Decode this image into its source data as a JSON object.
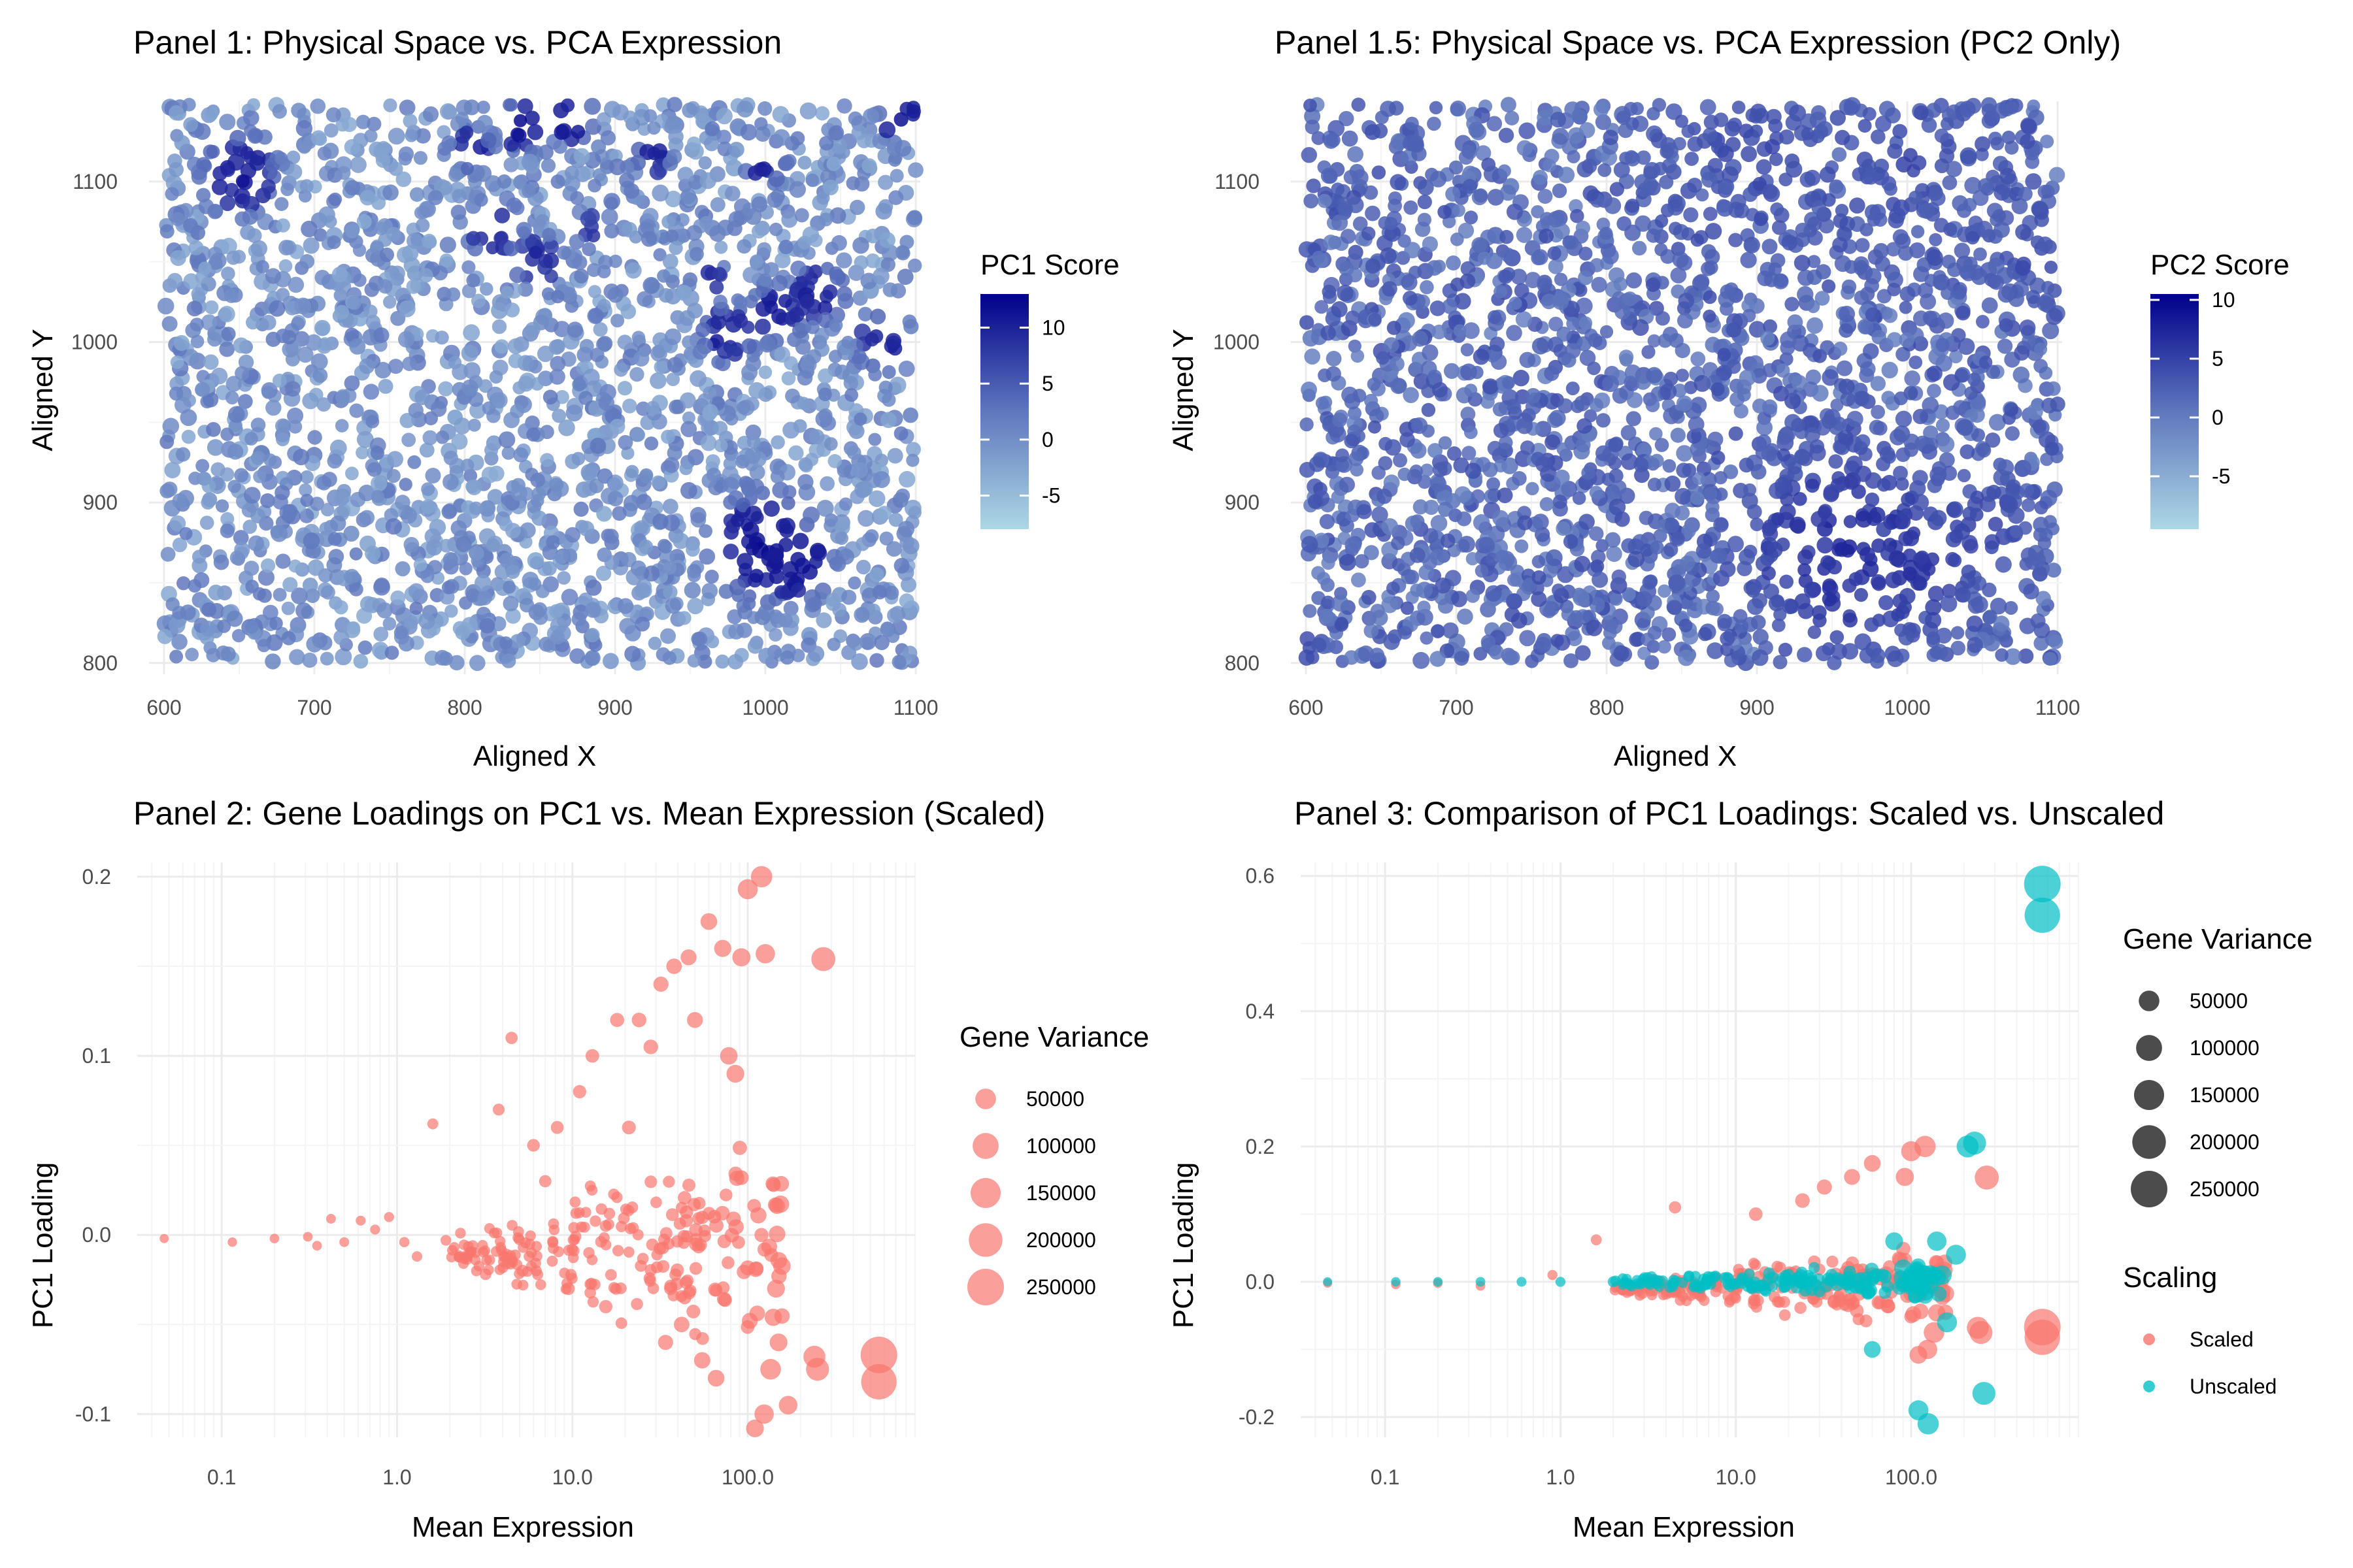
{
  "chart_data": [
    {
      "id": "p1",
      "type": "scatter",
      "title": "Panel 1: Physical Space vs. PCA Expression",
      "xlabel": "Aligned X",
      "ylabel": "Aligned Y",
      "xlim": [
        590,
        1103
      ],
      "ylim": [
        793,
        1150
      ],
      "xticks": [
        600,
        700,
        800,
        900,
        1000,
        1100
      ],
      "yticks": [
        800,
        900,
        1000,
        1100
      ],
      "xtick_labels": [
        "600",
        "700",
        "800",
        "900",
        "1000",
        "1100"
      ],
      "ytick_labels": [
        "800",
        "900",
        "1000",
        "1100"
      ],
      "grid": true,
      "color_scale": {
        "title": "PC1 Score",
        "min": -8,
        "max": 13,
        "low_color": "#add8e6",
        "high_color": "#00008b",
        "ticks": [
          10,
          5,
          0,
          -5
        ],
        "tick_labels": [
          "10",
          "5",
          "0",
          "-5"
        ]
      },
      "spots": {
        "x_range": [
          600,
          1100
        ],
        "y_range": [
          800,
          1148
        ],
        "typical_score": -1
      },
      "hotspots": [
        {
          "x": 650,
          "y": 1105,
          "radius": 22,
          "score": 11
        },
        {
          "x": 838,
          "y": 1135,
          "radius": 14,
          "score": 12
        },
        {
          "x": 870,
          "y": 1140,
          "radius": 14,
          "score": 12
        },
        {
          "x": 805,
          "y": 1120,
          "radius": 12,
          "score": 11
        },
        {
          "x": 925,
          "y": 1115,
          "radius": 10,
          "score": 11
        },
        {
          "x": 1000,
          "y": 1112,
          "radius": 12,
          "score": 11
        },
        {
          "x": 1092,
          "y": 1140,
          "radius": 14,
          "score": 12
        },
        {
          "x": 820,
          "y": 1070,
          "radius": 16,
          "score": 10
        },
        {
          "x": 848,
          "y": 1050,
          "radius": 14,
          "score": 10
        },
        {
          "x": 885,
          "y": 1070,
          "radius": 10,
          "score": 9
        },
        {
          "x": 962,
          "y": 1040,
          "radius": 10,
          "score": 10
        },
        {
          "x": 975,
          "y": 1005,
          "radius": 16,
          "score": 11
        },
        {
          "x": 1008,
          "y": 1018,
          "radius": 16,
          "score": 11
        },
        {
          "x": 1035,
          "y": 1030,
          "radius": 16,
          "score": 11
        },
        {
          "x": 1078,
          "y": 1000,
          "radius": 16,
          "score": 11
        },
        {
          "x": 1000,
          "y": 872,
          "radius": 30,
          "score": 12
        },
        {
          "x": 1022,
          "y": 862,
          "radius": 20,
          "score": 12
        }
      ]
    },
    {
      "id": "p15",
      "type": "scatter",
      "title": "Panel 1.5: Physical Space vs. PCA Expression (PC2 Only)",
      "xlabel": "Aligned X",
      "ylabel": "Aligned Y",
      "xlim": [
        590,
        1103
      ],
      "ylim": [
        793,
        1150
      ],
      "xticks": [
        600,
        700,
        800,
        900,
        1000,
        1100
      ],
      "yticks": [
        800,
        900,
        1000,
        1100
      ],
      "xtick_labels": [
        "600",
        "700",
        "800",
        "900",
        "1000",
        "1100"
      ],
      "ytick_labels": [
        "800",
        "900",
        "1000",
        "1100"
      ],
      "grid": true,
      "color_scale": {
        "title": "PC2 Score",
        "min": -9.5,
        "max": 10.5,
        "low_color": "#add8e6",
        "high_color": "#00008b",
        "ticks": [
          10,
          5,
          0,
          -5
        ],
        "tick_labels": [
          "10",
          "5",
          "0",
          "-5"
        ]
      },
      "spots": {
        "x_range": [
          600,
          1100
        ],
        "y_range": [
          800,
          1148
        ],
        "typical_score": 1
      },
      "hotspots": [
        {
          "x": 960,
          "y": 870,
          "radius": 55,
          "score": 7
        },
        {
          "x": 1000,
          "y": 860,
          "radius": 40,
          "score": 6
        },
        {
          "x": 1040,
          "y": 880,
          "radius": 35,
          "score": 5
        },
        {
          "x": 900,
          "y": 1120,
          "radius": 60,
          "score": 4
        },
        {
          "x": 1000,
          "y": 1110,
          "radius": 55,
          "score": 4
        },
        {
          "x": 1085,
          "y": 1050,
          "radius": 30,
          "score": 4
        },
        {
          "x": 650,
          "y": 1105,
          "radius": 25,
          "score": 3
        }
      ]
    },
    {
      "id": "p2",
      "type": "scatter",
      "title": "Panel 2: Gene Loadings on PC1 vs. Mean Expression (Scaled)",
      "xlabel": "Mean Expression",
      "ylabel": "PC1 Loading",
      "xscale": "log",
      "xlim": [
        0.033,
        900
      ],
      "ylim": [
        -0.113,
        0.208
      ],
      "xticks": [
        0.1,
        1,
        10,
        100
      ],
      "xtick_labels": [
        "0.1",
        "1.0",
        "10.0",
        "100.0"
      ],
      "yticks": [
        -0.1,
        0,
        0.1,
        0.2
      ],
      "ytick_labels": [
        "-0.1",
        "0.0",
        "0.1",
        "0.2"
      ],
      "grid": true,
      "size_legend": {
        "title": "Gene Variance",
        "values": [
          50000,
          100000,
          150000,
          200000,
          250000
        ],
        "labels": [
          "50000",
          "100000",
          "150000",
          "200000",
          "250000"
        ]
      },
      "series": [
        {
          "name": "Scaled",
          "color": "#f8766d",
          "points": [
            [
              0.047,
              -0.002,
              500
            ],
            [
              0.115,
              -0.004,
              800
            ],
            [
              0.2,
              -0.002,
              900
            ],
            [
              0.31,
              -0.001,
              1000
            ],
            [
              0.35,
              -0.006,
              1000
            ],
            [
              0.42,
              0.009,
              1100
            ],
            [
              0.5,
              -0.004,
              1200
            ],
            [
              0.62,
              0.008,
              1300
            ],
            [
              0.75,
              0.003,
              1400
            ],
            [
              0.9,
              0.01,
              1500
            ],
            [
              1.1,
              -0.004,
              1700
            ],
            [
              1.3,
              -0.012,
              2000
            ],
            [
              1.6,
              0.062,
              3000
            ],
            [
              1.9,
              -0.003,
              2500
            ],
            [
              2.3,
              0.001,
              2500
            ],
            [
              2.7,
              -0.006,
              3000
            ],
            [
              3.2,
              -0.022,
              4000
            ],
            [
              3.8,
              0.07,
              5000
            ],
            [
              4.5,
              0.11,
              6000
            ],
            [
              5.2,
              -0.02,
              5000
            ],
            [
              6.0,
              0.05,
              7000
            ],
            [
              7.0,
              0.03,
              6000
            ],
            [
              8.2,
              0.06,
              8000
            ],
            [
              9.5,
              -0.03,
              7000
            ],
            [
              11.0,
              0.08,
              9000
            ],
            [
              13.0,
              0.1,
              10000
            ],
            [
              15.5,
              -0.04,
              9000
            ],
            [
              18.0,
              0.12,
              12000
            ],
            [
              21.0,
              0.06,
              11000
            ],
            [
              24.0,
              0.12,
              14000
            ],
            [
              28.0,
              0.105,
              14000
            ],
            [
              32.0,
              0.14,
              16000
            ],
            [
              34.0,
              -0.06,
              16000
            ],
            [
              38.0,
              0.15,
              18000
            ],
            [
              42.0,
              -0.05,
              18000
            ],
            [
              46.0,
              0.155,
              20000
            ],
            [
              50.0,
              0.12,
              20000
            ],
            [
              55.0,
              -0.07,
              22000
            ],
            [
              60.0,
              0.175,
              24000
            ],
            [
              66.0,
              -0.08,
              24000
            ],
            [
              72.0,
              0.16,
              26000
            ],
            [
              78.0,
              0.1,
              28000
            ],
            [
              85.0,
              0.09,
              30000
            ],
            [
              92.0,
              0.155,
              32000
            ],
            [
              100.0,
              0.193,
              45000
            ],
            [
              110.0,
              -0.108,
              30000
            ],
            [
              120.0,
              0.2,
              55000
            ],
            [
              124.0,
              -0.1,
              40000
            ],
            [
              126.0,
              0.157,
              40000
            ],
            [
              135.0,
              -0.075,
              50000
            ],
            [
              145.0,
              -0.03,
              30000
            ],
            [
              150.0,
              -0.06,
              30000
            ],
            [
              170.0,
              -0.095,
              35000
            ],
            [
              240.0,
              -0.068,
              60000
            ],
            [
              250.0,
              -0.075,
              70000
            ],
            [
              270.0,
              0.154,
              80000
            ],
            [
              560.0,
              -0.067,
              250000
            ],
            [
              560.0,
              -0.082,
              230000
            ]
          ],
          "cloud": {
            "count": 230,
            "xlog_range": [
              0.3,
              2.2
            ],
            "y_center": -0.01,
            "seed": 17
          }
        }
      ]
    },
    {
      "id": "p3",
      "type": "scatter",
      "title": "Panel 3: Comparison of PC1 Loadings: Scaled vs. Unscaled",
      "xlabel": "Mean Expression",
      "ylabel": "PC1 Loading",
      "xscale": "log",
      "xlim": [
        0.033,
        900
      ],
      "ylim": [
        -0.23,
        0.62
      ],
      "xticks": [
        0.1,
        1,
        10,
        100
      ],
      "xtick_labels": [
        "0.1",
        "1.0",
        "10.0",
        "100.0"
      ],
      "yticks": [
        -0.2,
        0,
        0.2,
        0.4,
        0.6
      ],
      "ytick_labels": [
        "-0.2",
        "0.0",
        "0.2",
        "0.4",
        "0.6"
      ],
      "grid": true,
      "size_legend": {
        "title": "Gene Variance",
        "values": [
          50000,
          100000,
          150000,
          200000,
          250000
        ],
        "labels": [
          "50000",
          "100000",
          "150000",
          "200000",
          "250000"
        ]
      },
      "color_legend": {
        "title": "Scaling",
        "items": [
          {
            "label": "Scaled",
            "color": "#f8766d"
          },
          {
            "label": "Unscaled",
            "color": "#00bfc4"
          }
        ]
      },
      "series": [
        {
          "name": "Scaled",
          "color": "#f8766d",
          "points": [
            [
              0.047,
              -0.002,
              500
            ],
            [
              0.115,
              -0.004,
              800
            ],
            [
              0.2,
              -0.002,
              900
            ],
            [
              0.35,
              -0.006,
              1000
            ],
            [
              0.9,
              0.01,
              1500
            ],
            [
              1.6,
              0.062,
              3000
            ],
            [
              4.5,
              0.11,
              6000
            ],
            [
              13.0,
              0.1,
              10000
            ],
            [
              24.0,
              0.12,
              14000
            ],
            [
              32.0,
              0.14,
              16000
            ],
            [
              46.0,
              0.155,
              20000
            ],
            [
              60.0,
              0.175,
              24000
            ],
            [
              92.0,
              0.155,
              32000
            ],
            [
              100.0,
              0.193,
              45000
            ],
            [
              110.0,
              -0.108,
              30000
            ],
            [
              120.0,
              0.2,
              55000
            ],
            [
              124.0,
              -0.1,
              40000
            ],
            [
              135.0,
              -0.075,
              50000
            ],
            [
              240.0,
              -0.068,
              60000
            ],
            [
              250.0,
              -0.075,
              70000
            ],
            [
              270.0,
              0.154,
              80000
            ],
            [
              560.0,
              -0.067,
              250000
            ],
            [
              560.0,
              -0.082,
              230000
            ]
          ],
          "cloud": {
            "count": 230,
            "xlog_range": [
              0.3,
              2.2
            ],
            "y_center": -0.01,
            "seed": 17
          }
        },
        {
          "name": "Unscaled",
          "color": "#00bfc4",
          "points": [
            [
              0.047,
              0.0,
              500
            ],
            [
              0.115,
              0.0,
              800
            ],
            [
              0.2,
              0.0,
              900
            ],
            [
              0.35,
              0.0,
              1000
            ],
            [
              0.6,
              0.0,
              1200
            ],
            [
              1.0,
              0.0,
              1500
            ],
            [
              2.0,
              0.0,
              3000
            ],
            [
              60.0,
              -0.1,
              24000
            ],
            [
              80.0,
              0.06,
              30000
            ],
            [
              90.0,
              0.02,
              30000
            ],
            [
              110.0,
              -0.19,
              45000
            ],
            [
              125.0,
              -0.21,
              55000
            ],
            [
              140.0,
              0.06,
              40000
            ],
            [
              150.0,
              0.01,
              40000
            ],
            [
              160.0,
              -0.06,
              45000
            ],
            [
              180.0,
              0.04,
              45000
            ],
            [
              210.0,
              0.2,
              60000
            ],
            [
              230.0,
              0.205,
              70000
            ],
            [
              260.0,
              -0.165,
              70000
            ],
            [
              560.0,
              0.588,
              250000
            ],
            [
              560.0,
              0.542,
              230000
            ]
          ],
          "cloud": {
            "count": 180,
            "xlog_range": [
              0.3,
              2.2
            ],
            "y_center": 0.0,
            "seed": 29
          }
        }
      ]
    }
  ]
}
